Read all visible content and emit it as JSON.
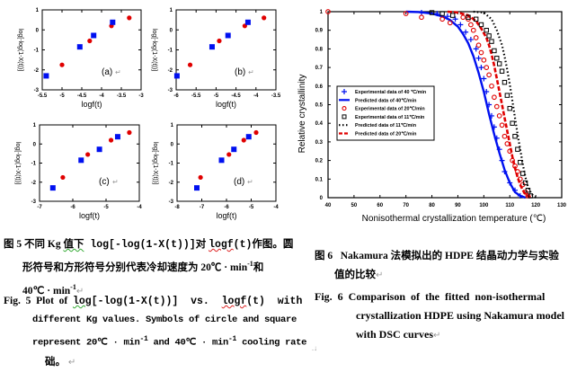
{
  "chart_data": [
    {
      "type": "scatter",
      "panel": "(a)",
      "title": "",
      "xlabel": "logf(t)",
      "ylabel": "log[-log(1-X(t))]",
      "xlim": [
        -5.5,
        -3
      ],
      "ylim": [
        -3,
        1
      ],
      "xticks": [
        "-5.5",
        "-5",
        "-4.5",
        "-4",
        "-3.5",
        "-3"
      ],
      "yticks": [
        "-3",
        "-2",
        "-1",
        "0",
        "1"
      ],
      "series": [
        {
          "name": "20℃·min-1 (circle)",
          "color": "#e00000",
          "marker": "circle",
          "x": [
            -5.0,
            -4.3,
            -3.75,
            -3.3
          ],
          "y": [
            -1.75,
            -0.55,
            0.2,
            0.6
          ]
        },
        {
          "name": "40℃·min-1 (square)",
          "color": "#0010f0",
          "marker": "square",
          "x": [
            -5.4,
            -4.55,
            -4.2,
            -3.72
          ],
          "y": [
            -2.3,
            -0.85,
            -0.28,
            0.38
          ]
        }
      ]
    },
    {
      "type": "scatter",
      "panel": "(b)",
      "title": "",
      "xlabel": "logf(t)",
      "ylabel": "log[-log(1-X(t))]",
      "xlim": [
        -6,
        -3.5
      ],
      "ylim": [
        -3,
        1
      ],
      "xticks": [
        "-6",
        "-5.5",
        "-5",
        "-4.5",
        "-4",
        "-3.5"
      ],
      "yticks": [
        "-3",
        "-2",
        "-1",
        "0",
        "1"
      ],
      "series": [
        {
          "name": "20℃·min-1 (circle)",
          "color": "#e00000",
          "marker": "circle",
          "x": [
            -5.65,
            -4.92,
            -4.28,
            -3.8
          ],
          "y": [
            -1.75,
            -0.55,
            0.2,
            0.6
          ]
        },
        {
          "name": "40℃·min-1 (square)",
          "color": "#0010f0",
          "marker": "square",
          "x": [
            -5.98,
            -5.1,
            -4.7,
            -4.2
          ],
          "y": [
            -2.3,
            -0.85,
            -0.28,
            0.38
          ]
        }
      ]
    },
    {
      "type": "scatter",
      "panel": "(c)",
      "title": "",
      "xlabel": "logf(t)",
      "ylabel": "log[-log(1-X(t))]",
      "xlim": [
        -7,
        -4
      ],
      "ylim": [
        -3,
        1
      ],
      "xticks": [
        "-7",
        "-6",
        "-5",
        "-4"
      ],
      "yticks": [
        "-3",
        "-2",
        "-1",
        "0",
        "1"
      ],
      "series": [
        {
          "name": "20℃·min-1 (circle)",
          "color": "#e00000",
          "marker": "circle",
          "x": [
            -6.3,
            -5.55,
            -4.85,
            -4.3
          ],
          "y": [
            -1.75,
            -0.55,
            0.2,
            0.6
          ]
        },
        {
          "name": "40℃·min-1 (square)",
          "color": "#0010f0",
          "marker": "square",
          "x": [
            -6.6,
            -5.75,
            -5.2,
            -4.65
          ],
          "y": [
            -2.3,
            -0.85,
            -0.28,
            0.38
          ]
        }
      ]
    },
    {
      "type": "scatter",
      "panel": "(d)",
      "title": "",
      "xlabel": "logf(t)",
      "ylabel": "log[-log(1-X(t))]",
      "xlim": [
        -8,
        -4
      ],
      "ylim": [
        -3,
        1
      ],
      "xticks": [
        "-8",
        "-7",
        "-6",
        "-5",
        "-4"
      ],
      "yticks": [
        "-3",
        "-2",
        "-1",
        "0",
        "1"
      ],
      "series": [
        {
          "name": "20℃·min-1 (circle)",
          "color": "#e00000",
          "marker": "circle",
          "x": [
            -7.05,
            -5.9,
            -5.3,
            -4.8
          ],
          "y": [
            -1.75,
            -0.55,
            0.2,
            0.6
          ]
        },
        {
          "name": "40℃·min-1 (square)",
          "color": "#0010f0",
          "marker": "square",
          "x": [
            -7.2,
            -6.2,
            -5.7,
            -5.1
          ],
          "y": [
            -2.3,
            -0.85,
            -0.28,
            0.38
          ]
        }
      ]
    },
    {
      "type": "line",
      "title": "",
      "xlabel": "Nonisothermal crystallization temperature (℃)",
      "ylabel": "Relative crystallinity",
      "xlim": [
        40,
        130
      ],
      "ylim": [
        0,
        1
      ],
      "xticks": [
        "40",
        "50",
        "60",
        "70",
        "80",
        "90",
        "100",
        "110",
        "120",
        "130"
      ],
      "yticks": [
        "0",
        "0.1",
        "0.2",
        "0.3",
        "0.4",
        "0.5",
        "0.6",
        "0.7",
        "0.8",
        "0.9",
        "1"
      ],
      "legend_position": "center-left",
      "series": [
        {
          "name": "Experimental data of 40 ℃/min",
          "color": "#0010f0",
          "style": "plus",
          "x": [
            76,
            82,
            86,
            89,
            91,
            93,
            95,
            97,
            98,
            99,
            100,
            101,
            102,
            103,
            104,
            105,
            106,
            107,
            108,
            110,
            112,
            114
          ],
          "y": [
            0.995,
            0.99,
            0.975,
            0.96,
            0.93,
            0.89,
            0.85,
            0.8,
            0.75,
            0.7,
            0.64,
            0.57,
            0.5,
            0.44,
            0.38,
            0.32,
            0.26,
            0.2,
            0.14,
            0.08,
            0.04,
            0.01
          ]
        },
        {
          "name": "Predicted data of 40℃/min",
          "color": "#0010f0",
          "style": "solid",
          "x": [
            70,
            75,
            80,
            84,
            87,
            90,
            92,
            94,
            96,
            98,
            100,
            102,
            104,
            106,
            108,
            110,
            112,
            114,
            116
          ],
          "y": [
            1.0,
            0.998,
            0.99,
            0.975,
            0.955,
            0.92,
            0.88,
            0.83,
            0.76,
            0.67,
            0.57,
            0.45,
            0.34,
            0.24,
            0.15,
            0.08,
            0.03,
            0.01,
            0.0
          ]
        },
        {
          "name": "Experimental data of 20℃/min",
          "color": "#e00000",
          "style": "circle",
          "x": [
            40,
            70,
            76,
            84,
            87,
            92,
            94,
            95,
            96,
            97,
            98,
            99,
            100,
            101,
            102,
            103,
            104,
            105,
            106,
            107,
            108,
            109,
            110,
            111,
            112,
            113,
            114,
            115,
            116,
            117
          ],
          "y": [
            1.0,
            0.99,
            0.97,
            0.96,
            0.94,
            0.97,
            0.96,
            0.93,
            0.9,
            0.86,
            0.82,
            0.78,
            0.74,
            0.7,
            0.66,
            0.6,
            0.54,
            0.49,
            0.44,
            0.39,
            0.33,
            0.29,
            0.25,
            0.2,
            0.17,
            0.14,
            0.1,
            0.07,
            0.03,
            0.01
          ]
        },
        {
          "name": "Experimental data of 11℃/min",
          "color": "#000000",
          "style": "square",
          "x": [
            80,
            84,
            88,
            94,
            97,
            99,
            101,
            102,
            103,
            104,
            105,
            106,
            107,
            108,
            109,
            110,
            111,
            112,
            113,
            114,
            115,
            116,
            117,
            118
          ],
          "y": [
            0.995,
            0.99,
            0.98,
            0.97,
            0.96,
            0.93,
            0.9,
            0.87,
            0.84,
            0.79,
            0.75,
            0.72,
            0.68,
            0.62,
            0.55,
            0.48,
            0.4,
            0.33,
            0.26,
            0.19,
            0.13,
            0.08,
            0.04,
            0.01
          ]
        },
        {
          "name": "Predicted data of 11℃/min",
          "color": "#000000",
          "style": "dotted",
          "x": [
            96,
            100,
            103,
            105,
            107,
            108,
            109,
            110,
            111,
            112,
            113,
            114,
            115,
            116,
            117,
            118,
            119,
            120
          ],
          "y": [
            1.0,
            0.995,
            0.96,
            0.9,
            0.82,
            0.76,
            0.69,
            0.61,
            0.52,
            0.43,
            0.34,
            0.26,
            0.18,
            0.11,
            0.06,
            0.03,
            0.01,
            0.0
          ]
        },
        {
          "name": "Predicted data of 20℃/min",
          "color": "#e00000",
          "style": "dashed",
          "x": [
            86,
            90,
            94,
            97,
            99,
            101,
            102,
            103,
            104,
            105,
            106,
            107,
            108,
            109,
            110,
            111,
            112,
            113,
            114,
            115,
            116,
            117,
            118
          ],
          "y": [
            1.0,
            0.995,
            0.98,
            0.95,
            0.91,
            0.86,
            0.82,
            0.77,
            0.71,
            0.64,
            0.57,
            0.5,
            0.43,
            0.36,
            0.29,
            0.22,
            0.16,
            0.11,
            0.07,
            0.04,
            0.02,
            0.01,
            0.0
          ]
        }
      ]
    }
  ],
  "captions": {
    "fig5_cn_prefix": "图 5",
    "fig5_cn_a": "不同 Kg ",
    "fig5_cn_b": "值下",
    "fig5_cn_formula1": " log[-log(1-X(t))]",
    "fig5_cn_c": "对 ",
    "fig5_cn_formula2": "logf",
    "fig5_cn_formula3": "(t)",
    "fig5_cn_d": "作图。圆",
    "fig5_cn_line2": "形符号和方形符号分别代表冷却速度为 20℃ · min",
    "fig5_cn_line2_sup": "-1",
    "fig5_cn_line2_end": "和",
    "fig5_cn_line3": "40℃ · min",
    "fig5_cn_line3_sup": "-1",
    "fig5_en_line1_a": "Fig.  5  Plot  of  ",
    "fig5_en_line1_log": "log",
    "fig5_en_line1_b": "[-log(1-X(t))]  vs.  ",
    "fig5_en_line1_logf": "logf",
    "fig5_en_line1_c": "(t)  with",
    "fig5_en_line2": "different Kg values. Symbols of circle and square",
    "fig5_en_line3_a": "represent 20℃ · min",
    "fig5_en_line3_sup1": "-1",
    "fig5_en_line3_b": " and 40℃ · min",
    "fig5_en_line3_sup2": "-1",
    "fig5_en_line3_c": " cooling rate",
    "fig5_en_line4": "础。",
    "fig6_cn_line1": "图 6   Nakamura 法模拟出的 HDPE 结晶动力学与实验",
    "fig6_cn_line2": "值的比较",
    "fig6_en_line1": "Fig.  6  Comparison  of  the  fitted  non-isothermal",
    "fig6_en_line2": "crystallization HDPE using Nakamura model",
    "fig6_en_line3": "with DSC curves",
    "return_mark": "↵",
    "stray_mark": ".↓"
  }
}
